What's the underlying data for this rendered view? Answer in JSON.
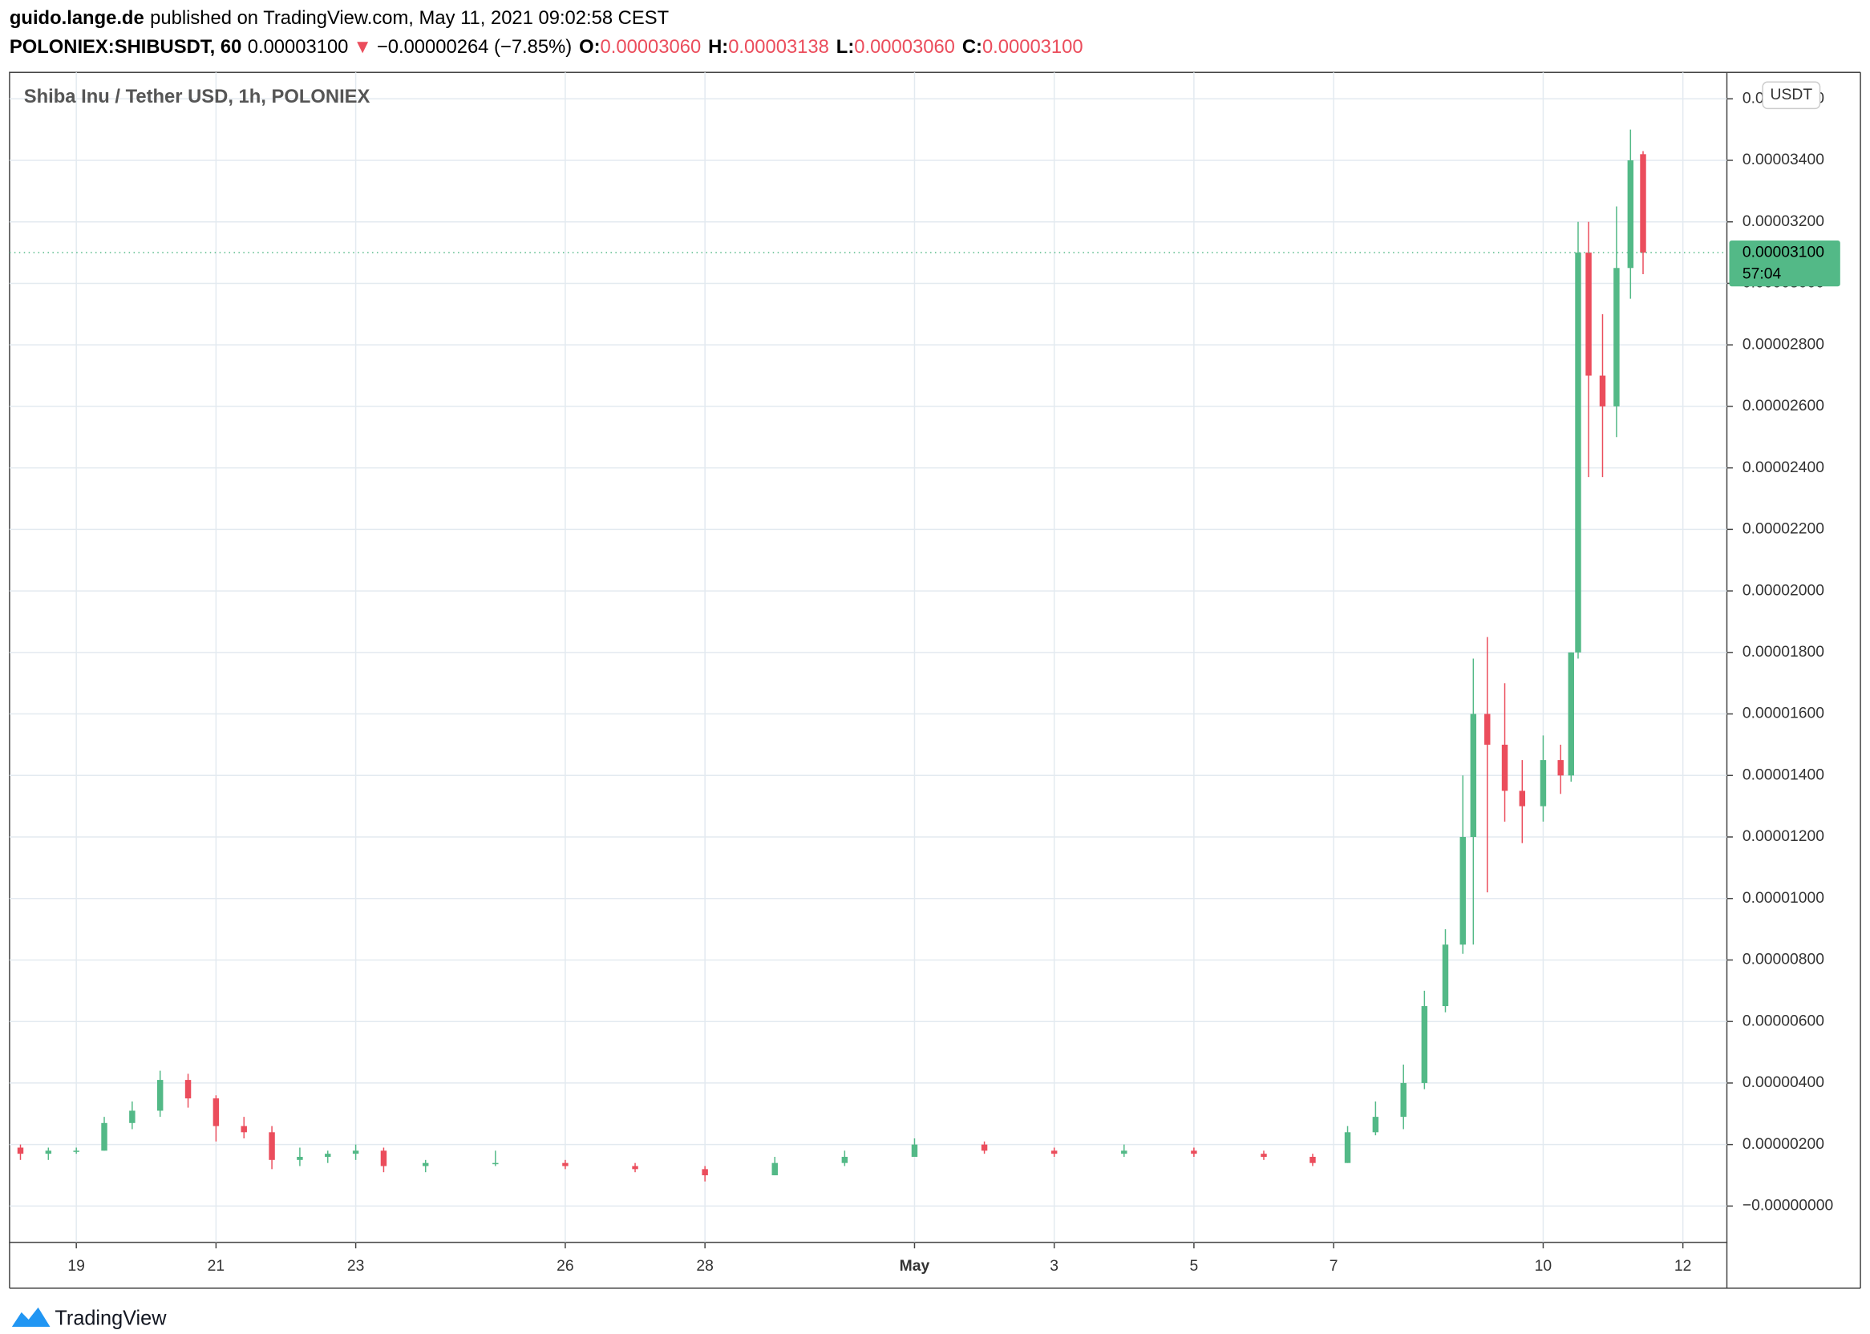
{
  "header": {
    "publisher": "guido.lange.de",
    "published": "published on TradingView.com, May 11, 2021 09:02:58 CEST",
    "symbol": "POLONIEX:SHIBUSDT, 60",
    "last": "0.00003100",
    "arrow": "▼",
    "change": "−0.00000264 (−7.85%)",
    "ohlc": [
      {
        "label": "O:",
        "value": "0.00003060"
      },
      {
        "label": "H:",
        "value": "0.00003138"
      },
      {
        "label": "L:",
        "value": "0.00003060"
      },
      {
        "label": "C:",
        "value": "0.00003100"
      }
    ]
  },
  "footer": {
    "brand": "TradingView"
  },
  "chart_data": {
    "type": "candlestick",
    "title": "Shiba Inu / Tether USD, 1h, POLONIEX",
    "currency": "USDT",
    "up_color": "#53b987",
    "down_color": "#eb4d5c",
    "grid": true,
    "last_price": 3.1e-05,
    "last_price_label": "0.00003100",
    "countdown": "57:04",
    "xlim": [
      -0.956,
      23.63
    ],
    "xticks": [
      {
        "value": 0,
        "label": "19"
      },
      {
        "value": 2,
        "label": "21"
      },
      {
        "value": 4,
        "label": "23"
      },
      {
        "value": 7,
        "label": "26"
      },
      {
        "value": 9,
        "label": "28"
      },
      {
        "value": 12,
        "label": "May"
      },
      {
        "value": 14,
        "label": "3"
      },
      {
        "value": 16,
        "label": "5"
      },
      {
        "value": 18,
        "label": "7"
      },
      {
        "value": 21,
        "label": "10"
      },
      {
        "value": 23,
        "label": "12"
      }
    ],
    "ylim": [
      -1.18e-06,
      3.686e-05
    ],
    "yticks": [
      {
        "value": 0,
        "label": "−0.00000000"
      },
      {
        "value": 2e-06,
        "label": "0.00000200"
      },
      {
        "value": 4e-06,
        "label": "0.00000400"
      },
      {
        "value": 6e-06,
        "label": "0.00000600"
      },
      {
        "value": 8e-06,
        "label": "0.00000800"
      },
      {
        "value": 1e-05,
        "label": "0.00001000"
      },
      {
        "value": 1.2e-05,
        "label": "0.00001200"
      },
      {
        "value": 1.4e-05,
        "label": "0.00001400"
      },
      {
        "value": 1.6e-05,
        "label": "0.00001600"
      },
      {
        "value": 1.8e-05,
        "label": "0.00001800"
      },
      {
        "value": 2e-05,
        "label": "0.00002000"
      },
      {
        "value": 2.2e-05,
        "label": "0.00002200"
      },
      {
        "value": 2.4e-05,
        "label": "0.00002400"
      },
      {
        "value": 2.6e-05,
        "label": "0.00002600"
      },
      {
        "value": 2.8e-05,
        "label": "0.00002800"
      },
      {
        "value": 3e-05,
        "label": "0.00003000"
      },
      {
        "value": 3.2e-05,
        "label": "0.00003200"
      },
      {
        "value": 3.4e-05,
        "label": "0.00003400"
      },
      {
        "value": 3.6e-05,
        "label": "0.00003600"
      }
    ],
    "x": [
      -0.8,
      -0.4,
      0,
      0.4,
      0.8,
      1.2,
      1.6,
      2.0,
      2.4,
      2.8,
      3.2,
      3.6,
      4.0,
      4.4,
      5,
      6,
      7,
      8,
      9,
      10,
      11,
      12,
      13,
      14,
      15,
      16,
      17,
      17.7,
      18.2,
      18.6,
      19.0,
      19.3,
      19.6,
      19.85,
      20.0,
      20.2,
      20.45,
      20.7,
      21.0,
      21.25,
      21.4,
      21.5,
      21.65,
      21.85,
      22.05,
      22.25,
      22.43
    ],
    "open": [
      1.9e-06,
      1.7e-06,
      1.8e-06,
      1.8e-06,
      2.7e-06,
      3.1e-06,
      4.1e-06,
      3.5e-06,
      2.6e-06,
      2.4e-06,
      1.5e-06,
      1.6e-06,
      1.7e-06,
      1.8e-06,
      1.3e-06,
      1.4e-06,
      1.4e-06,
      1.3e-06,
      1.2e-06,
      1e-06,
      1.4e-06,
      1.6e-06,
      2e-06,
      1.8e-06,
      1.7e-06,
      1.8e-06,
      1.7e-06,
      1.6e-06,
      1.4e-06,
      2.4e-06,
      2.9e-06,
      4e-06,
      6.5e-06,
      8.5e-06,
      1.2e-05,
      1.6e-05,
      1.5e-05,
      1.35e-05,
      1.3e-05,
      1.45e-05,
      1.4e-05,
      1.8e-05,
      3.1e-05,
      2.7e-05,
      2.6e-05,
      3.05e-05,
      3.42e-05
    ],
    "high": [
      2e-06,
      1.9e-06,
      1.9e-06,
      2.9e-06,
      3.4e-06,
      4.4e-06,
      4.3e-06,
      3.6e-06,
      2.9e-06,
      2.6e-06,
      1.9e-06,
      1.8e-06,
      2e-06,
      1.9e-06,
      1.5e-06,
      1.8e-06,
      1.5e-06,
      1.4e-06,
      1.3e-06,
      1.6e-06,
      1.8e-06,
      2.2e-06,
      2.1e-06,
      1.9e-06,
      2e-06,
      1.9e-06,
      1.8e-06,
      1.7e-06,
      2.6e-06,
      3.4e-06,
      4.6e-06,
      7e-06,
      9e-06,
      1.4e-05,
      1.78e-05,
      1.85e-05,
      1.7e-05,
      1.45e-05,
      1.53e-05,
      1.5e-05,
      1.8e-05,
      3.2e-05,
      3.2e-05,
      2.9e-05,
      3.25e-05,
      3.5e-05,
      3.43e-05
    ],
    "low": [
      1.5e-06,
      1.5e-06,
      1.7e-06,
      1.8e-06,
      2.5e-06,
      2.9e-06,
      3.2e-06,
      2.1e-06,
      2.2e-06,
      1.2e-06,
      1.3e-06,
      1.4e-06,
      1.5e-06,
      1.1e-06,
      1.1e-06,
      1.3e-06,
      1.2e-06,
      1.1e-06,
      8e-07,
      1e-06,
      1.3e-06,
      1.6e-06,
      1.7e-06,
      1.6e-06,
      1.6e-06,
      1.6e-06,
      1.5e-06,
      1.3e-06,
      1.4e-06,
      2.3e-06,
      2.5e-06,
      3.8e-06,
      6.3e-06,
      8.2e-06,
      8.5e-06,
      1.02e-05,
      1.25e-05,
      1.18e-05,
      1.25e-05,
      1.34e-05,
      1.38e-05,
      1.78e-05,
      2.37e-05,
      2.37e-05,
      2.5e-05,
      2.95e-05,
      3.03e-05
    ],
    "close": [
      1.7e-06,
      1.8e-06,
      1.8e-06,
      2.7e-06,
      3.1e-06,
      4.1e-06,
      3.5e-06,
      2.6e-06,
      2.4e-06,
      1.5e-06,
      1.6e-06,
      1.7e-06,
      1.8e-06,
      1.3e-06,
      1.4e-06,
      1.4e-06,
      1.3e-06,
      1.2e-06,
      1e-06,
      1.4e-06,
      1.6e-06,
      2e-06,
      1.8e-06,
      1.7e-06,
      1.8e-06,
      1.7e-06,
      1.6e-06,
      1.4e-06,
      2.4e-06,
      2.9e-06,
      4e-06,
      6.5e-06,
      8.5e-06,
      1.2e-05,
      1.6e-05,
      1.5e-05,
      1.35e-05,
      1.3e-05,
      1.45e-05,
      1.4e-05,
      1.8e-05,
      3.1e-05,
      2.7e-05,
      2.6e-05,
      3.05e-05,
      3.4e-05,
      3.1e-05
    ]
  }
}
